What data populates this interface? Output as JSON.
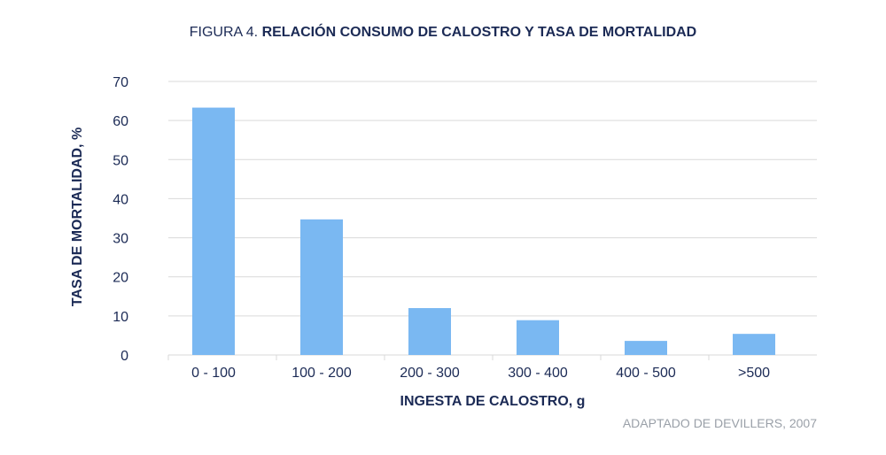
{
  "title": {
    "figure_label": "FIGURA 4.",
    "main": "RELACIÓN CONSUMO DE CALOSTRO Y TASA DE MORTALIDAD"
  },
  "source_note": "ADAPTADO DE DEVILLERS, 2007",
  "colors": {
    "bar": "#7ab8f2",
    "text": "#1b2a55",
    "grid": "#d9d9d9",
    "source": "#9aa0a8"
  },
  "chart_data": {
    "type": "bar",
    "categories": [
      "0 - 100",
      "100 - 200",
      "200 - 300",
      "300 - 400",
      "400 - 500",
      ">500"
    ],
    "values": [
      63.3,
      34.7,
      12,
      8.9,
      3.6,
      5.4
    ],
    "xlabel": "INGESTA DE CALOSTRO, g",
    "ylabel": "TASA DE MORTALIDAD, %",
    "ylim": [
      0,
      70
    ],
    "yticks": [
      0,
      10,
      20,
      30,
      40,
      50,
      60,
      70
    ],
    "grid": true
  }
}
